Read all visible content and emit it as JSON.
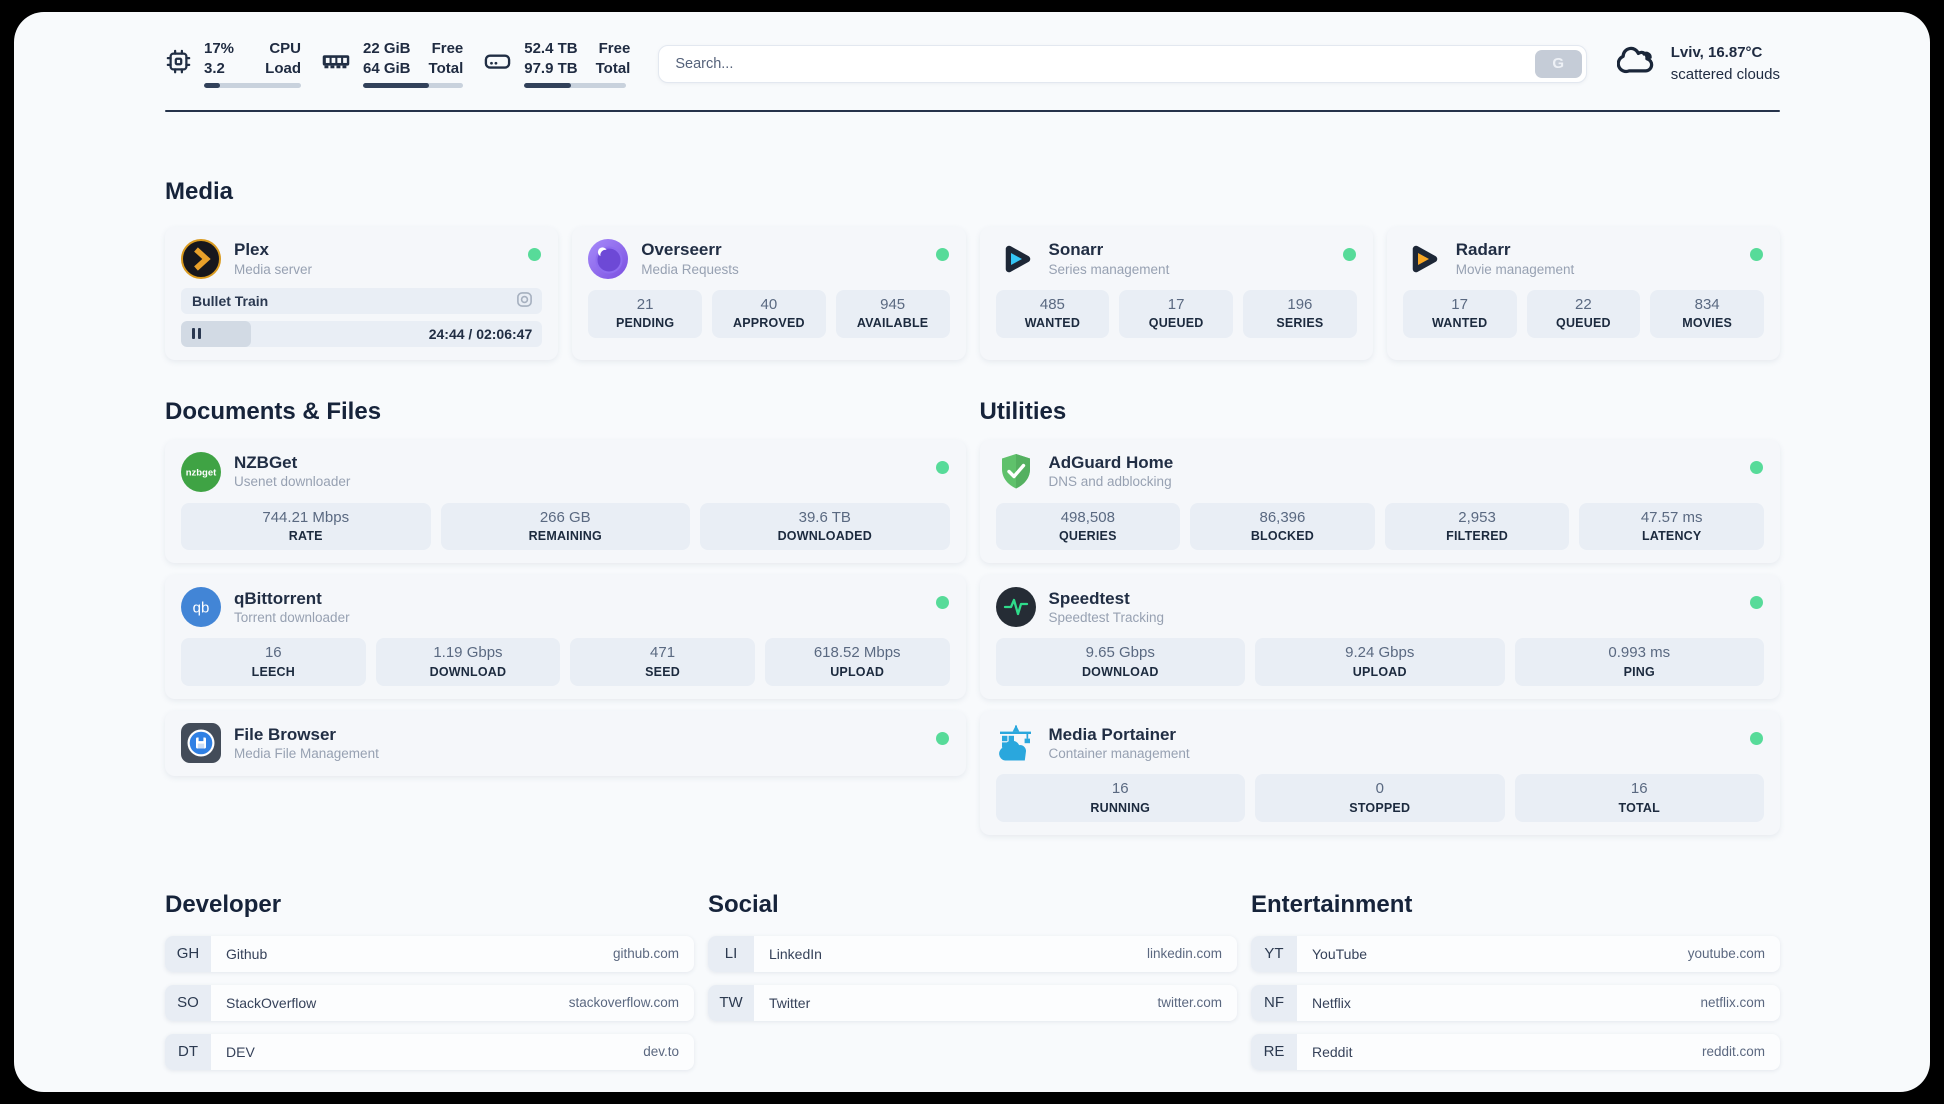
{
  "colors": {
    "status_green": "#57db99",
    "page_bg": "#f8fafc",
    "dark_text": "#212e44",
    "stat_bg": "#e9eef5"
  },
  "header": {
    "system": [
      {
        "icon": "cpu-icon",
        "v1": "17%",
        "v2": "3.2",
        "l1": "CPU",
        "l2": "Load",
        "pct": 17
      },
      {
        "icon": "ram-icon",
        "v1": "22 GiB",
        "v2": "64 GiB",
        "l1": "Free",
        "l2": "Total",
        "pct": 66
      },
      {
        "icon": "disk-icon",
        "v1": "52.4 TB",
        "v2": "97.9 TB",
        "l1": "Free",
        "l2": "Total",
        "pct": 46
      }
    ],
    "search": {
      "placeholder": "Search...",
      "button": "G"
    },
    "weather": {
      "location": "Lviv, 16.87°C",
      "condition": "scattered clouds",
      "icon": "cloud-icon"
    }
  },
  "titles": {
    "media": "Media",
    "documents": "Documents & Files",
    "utilities": "Utilities",
    "developer": "Developer",
    "social": "Social",
    "entertainment": "Entertainment"
  },
  "apps": {
    "plex": {
      "name": "Plex",
      "desc": "Media server",
      "now_playing": {
        "title": "Bullet Train",
        "time": "24:44 / 02:06:47",
        "pct": 19.5
      }
    },
    "overseerr": {
      "name": "Overseerr",
      "desc": "Media Requests",
      "stats": [
        {
          "value": "21",
          "label": "PENDING"
        },
        {
          "value": "40",
          "label": "APPROVED"
        },
        {
          "value": "945",
          "label": "AVAILABLE"
        }
      ]
    },
    "sonarr": {
      "name": "Sonarr",
      "desc": "Series management",
      "stats": [
        {
          "value": "485",
          "label": "WANTED"
        },
        {
          "value": "17",
          "label": "QUEUED"
        },
        {
          "value": "196",
          "label": "SERIES"
        }
      ]
    },
    "radarr": {
      "name": "Radarr",
      "desc": "Movie management",
      "stats": [
        {
          "value": "17",
          "label": "WANTED"
        },
        {
          "value": "22",
          "label": "QUEUED"
        },
        {
          "value": "834",
          "label": "MOVIES"
        }
      ]
    },
    "nzbget": {
      "name": "NZBGet",
      "desc": "Usenet downloader",
      "stats": [
        {
          "value": "744.21 Mbps",
          "label": "RATE"
        },
        {
          "value": "266 GB",
          "label": "REMAINING"
        },
        {
          "value": "39.6 TB",
          "label": "DOWNLOADED"
        }
      ]
    },
    "qbittorrent": {
      "name": "qBittorrent",
      "desc": "Torrent downloader",
      "stats": [
        {
          "value": "16",
          "label": "LEECH"
        },
        {
          "value": "1.19 Gbps",
          "label": "DOWNLOAD"
        },
        {
          "value": "471",
          "label": "SEED"
        },
        {
          "value": "618.52 Mbps",
          "label": "UPLOAD"
        }
      ]
    },
    "filebrowser": {
      "name": "File Browser",
      "desc": "Media File Management"
    },
    "adguard": {
      "name": "AdGuard Home",
      "desc": "DNS and adblocking",
      "stats": [
        {
          "value": "498,508",
          "label": "QUERIES"
        },
        {
          "value": "86,396",
          "label": "BLOCKED"
        },
        {
          "value": "2,953",
          "label": "FILTERED"
        },
        {
          "value": "47.57 ms",
          "label": "LATENCY"
        }
      ]
    },
    "speedtest": {
      "name": "Speedtest",
      "desc": "Speedtest Tracking",
      "stats": [
        {
          "value": "9.65 Gbps",
          "label": "DOWNLOAD"
        },
        {
          "value": "9.24 Gbps",
          "label": "UPLOAD"
        },
        {
          "value": "0.993 ms",
          "label": "PING"
        }
      ]
    },
    "portainer": {
      "name": "Media Portainer",
      "desc": "Container management",
      "stats": [
        {
          "value": "16",
          "label": "RUNNING"
        },
        {
          "value": "0",
          "label": "STOPPED"
        },
        {
          "value": "16",
          "label": "TOTAL"
        }
      ]
    }
  },
  "icon_text": {
    "nzbget": "nzbget",
    "qbittorrent": "qb"
  },
  "bookmarks": {
    "developer": [
      {
        "abbr": "GH",
        "name": "Github",
        "url": "github.com"
      },
      {
        "abbr": "SO",
        "name": "StackOverflow",
        "url": "stackoverflow.com"
      },
      {
        "abbr": "DT",
        "name": "DEV",
        "url": "dev.to"
      }
    ],
    "social": [
      {
        "abbr": "LI",
        "name": "LinkedIn",
        "url": "linkedin.com"
      },
      {
        "abbr": "TW",
        "name": "Twitter",
        "url": "twitter.com"
      }
    ],
    "entertainment": [
      {
        "abbr": "YT",
        "name": "YouTube",
        "url": "youtube.com"
      },
      {
        "abbr": "NF",
        "name": "Netflix",
        "url": "netflix.com"
      },
      {
        "abbr": "RE",
        "name": "Reddit",
        "url": "reddit.com"
      }
    ]
  }
}
